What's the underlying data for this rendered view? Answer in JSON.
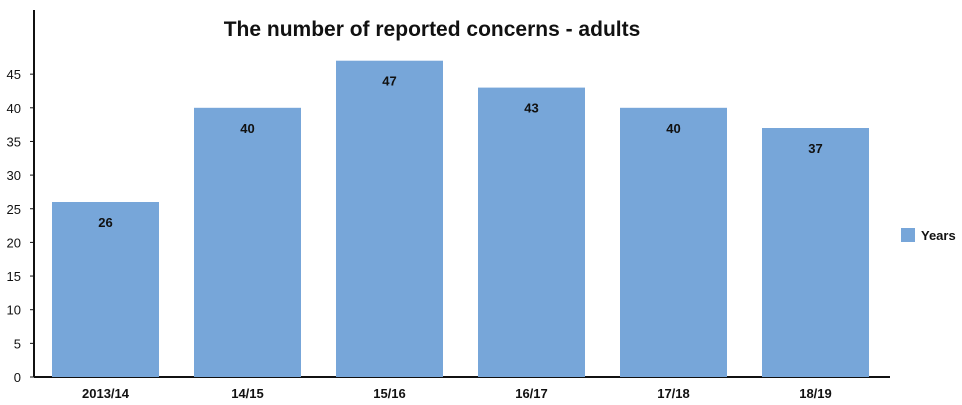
{
  "chart_data": {
    "type": "bar",
    "title": "The number of reported concerns - adults",
    "xlabel": "",
    "ylabel": "",
    "categories": [
      "2013/14",
      "14/15",
      "15/16",
      "16/17",
      "17/18",
      "18/19"
    ],
    "series": [
      {
        "name": "Years",
        "values": [
          26,
          40,
          47,
          43,
          40,
          37
        ],
        "color": "#77A6D9"
      }
    ],
    "data_labels": [
      "26",
      "40",
      "47",
      "43",
      "40",
      "37"
    ],
    "ylim": [
      0,
      50
    ],
    "yticks": [
      0,
      5,
      10,
      15,
      20,
      25,
      30,
      35,
      40,
      45
    ],
    "ytick_labels": [
      "0",
      "5",
      "10",
      "15",
      "20",
      "25",
      "30",
      "35",
      "40",
      "45"
    ],
    "grid": false,
    "legend_position": "right",
    "axis_color": "#111111"
  }
}
